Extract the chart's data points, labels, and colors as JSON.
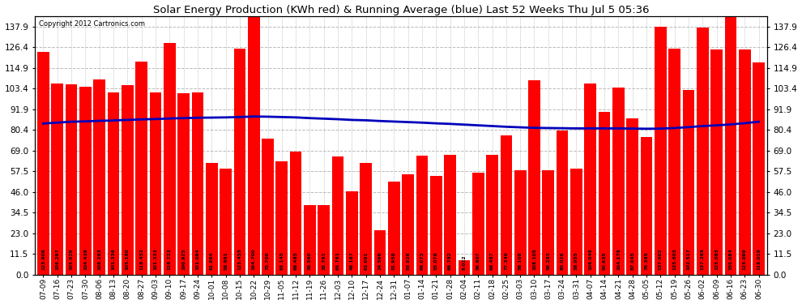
{
  "title": "Solar Energy Production (KWh red) & Running Average (blue) Last 52 Weeks Thu Jul 5 05:36",
  "copyright": "Copyright 2012 Cartronics.com",
  "bar_color": "#ff0000",
  "avg_line_color": "#0000bb",
  "background_color": "#ffffff",
  "plot_bg_color": "#ffffff",
  "grid_color": "#bbbbbb",
  "ylim": [
    0.0,
    143.7
  ],
  "yticks": [
    0.0,
    11.5,
    23.0,
    34.5,
    46.0,
    57.5,
    69.0,
    80.4,
    91.9,
    103.4,
    114.9,
    126.4,
    137.9
  ],
  "labels": [
    "07-09",
    "07-16",
    "07-23",
    "07-30",
    "08-06",
    "08-13",
    "08-20",
    "08-27",
    "09-03",
    "09-10",
    "09-17",
    "09-24",
    "10-01",
    "10-08",
    "10-15",
    "10-22",
    "10-29",
    "11-05",
    "11-12",
    "11-19",
    "11-26",
    "12-03",
    "12-10",
    "12-17",
    "12-24",
    "12-31",
    "01-07",
    "01-14",
    "01-21",
    "01-28",
    "02-04",
    "02-11",
    "02-18",
    "02-25",
    "03-03",
    "03-10",
    "03-17",
    "03-24",
    "03-31",
    "04-07",
    "04-14",
    "04-21",
    "04-28",
    "05-05",
    "05-12",
    "05-19",
    "05-26",
    "06-02",
    "06-09",
    "06-16",
    "06-23",
    "06-30"
  ],
  "values": [
    123.906,
    106.297,
    105.929,
    104.439,
    108.283,
    101.336,
    105.18,
    118.452,
    101.333,
    128.722,
    100.925,
    101.094,
    61.994,
    58.981,
    125.455,
    164.7,
    75.7,
    63.145,
    68.485,
    38.56,
    38.761,
    65.761,
    46.167,
    62.091,
    24.596,
    51.958,
    55.926,
    66.073,
    55.078,
    66.782,
    8.022,
    56.607,
    66.487,
    77.349,
    58.108,
    108.105,
    58.283,
    80.026,
    58.955,
    106.046,
    90.635,
    104.176,
    87.045,
    76.365,
    137.902,
    125.603,
    102.517,
    137.265,
    125.085,
    150.084,
    125.099,
    118.019
  ],
  "running_avg": [
    84.0,
    84.5,
    85.0,
    85.2,
    85.5,
    85.7,
    86.0,
    86.3,
    86.5,
    86.8,
    87.0,
    87.2,
    87.3,
    87.4,
    87.6,
    87.9,
    87.8,
    87.6,
    87.4,
    87.0,
    86.7,
    86.4,
    86.0,
    85.8,
    85.4,
    85.1,
    84.8,
    84.5,
    84.1,
    83.8,
    83.4,
    83.0,
    82.6,
    82.2,
    81.9,
    81.6,
    81.5,
    81.4,
    81.3,
    81.3,
    81.3,
    81.3,
    81.2,
    81.1,
    81.2,
    81.5,
    82.0,
    82.6,
    83.0,
    83.5,
    84.2,
    85.0
  ]
}
